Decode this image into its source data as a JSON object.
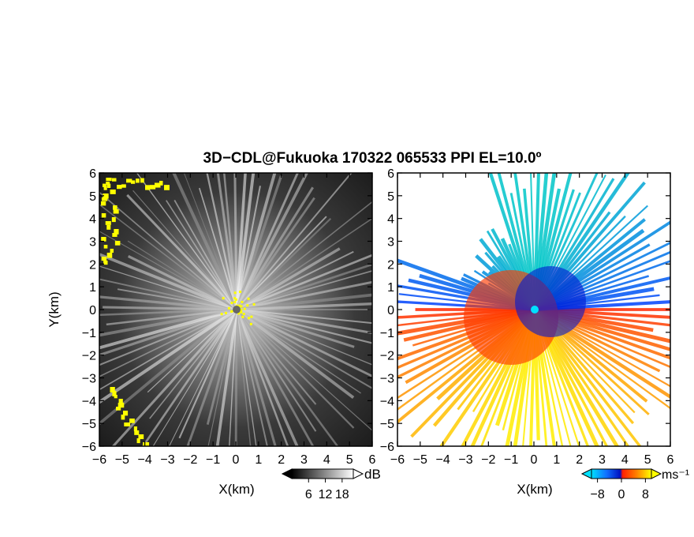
{
  "title": "3D−CDL@Fukuoka 170322 065533 PPI EL=10.0º",
  "colors": {
    "background": "#ffffff",
    "marker": "#ffff00",
    "origin_left": "#666666",
    "origin_right": "#00e0ff"
  },
  "chart_data": [
    {
      "type": "heatmap",
      "panel": "left",
      "field": "SNR (dB)",
      "xlabel": "X(km)",
      "ylabel": "Y(km)",
      "xlim": [
        -6,
        6
      ],
      "ylim": [
        -6,
        6
      ],
      "xticks": [
        "−6",
        "−5",
        "−4",
        "−3",
        "−2",
        "−1",
        "0",
        "1",
        "2",
        "3",
        "4",
        "5",
        "6"
      ],
      "yticks": [
        "6",
        "5",
        "4",
        "3",
        "2",
        "1",
        "0",
        "−1",
        "−2",
        "−3",
        "−4",
        "−5",
        "−6"
      ],
      "colorbar": {
        "unit": "dB",
        "ticks": [
          "6",
          "12",
          "18"
        ],
        "tick_values": [
          6,
          12,
          18
        ],
        "range": [
          0,
          22
        ],
        "colors": [
          "#000000",
          "#ffffff"
        ]
      }
    },
    {
      "type": "heatmap",
      "panel": "right",
      "field": "Radial velocity (m/s)",
      "xlabel": "X(km)",
      "xlim": [
        -6,
        6
      ],
      "ylim": [
        -6,
        6
      ],
      "xticks": [
        "−6",
        "−5",
        "−4",
        "−3",
        "−2",
        "−1",
        "0",
        "1",
        "2",
        "3",
        "4",
        "5",
        "6"
      ],
      "yticks": [
        "6",
        "5",
        "4",
        "3",
        "2",
        "1",
        "0",
        "−1",
        "−2",
        "−3",
        "−4",
        "−5",
        "−6"
      ],
      "colorbar": {
        "unit": "ms⁻¹",
        "ticks": [
          "−8",
          "0",
          "8"
        ],
        "tick_values": [
          -8,
          0,
          8
        ],
        "range": [
          -10,
          10
        ],
        "colors": [
          "#00e0ff",
          "#1070ff",
          "#0010c0",
          "#ff2000",
          "#ff8000",
          "#ffff00"
        ]
      }
    }
  ]
}
